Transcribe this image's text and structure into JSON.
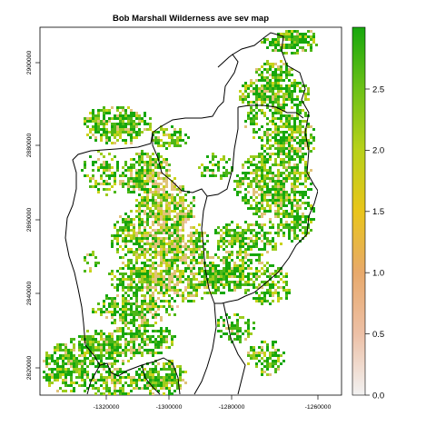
{
  "map": {
    "title": "Bob Marshall Wilderness ave sev map",
    "x_ticks": [
      "-1320000",
      "-1300000",
      "-1280000",
      "-1260000"
    ],
    "y_ticks": [
      "2900000",
      "2880000",
      "2860000",
      "2840000",
      "2820000"
    ],
    "legend": {
      "ticks": [
        "0.0",
        "0.5",
        "1.0",
        "1.5",
        "2.0",
        "2.5"
      ],
      "colors": [
        "#f2f2f2",
        "#edc0a6",
        "#e8a96b",
        "#e9c51a",
        "#b8d11a",
        "#6cc117",
        "#17a70d"
      ]
    },
    "palette": {
      "dark_green": "#17a70d",
      "green": "#4db717",
      "light_green": "#9ccc1e",
      "yellow_green": "#c8d31a",
      "tan": "#e0c27a",
      "peach": "#edc0a6",
      "outline": "#000000"
    }
  }
}
